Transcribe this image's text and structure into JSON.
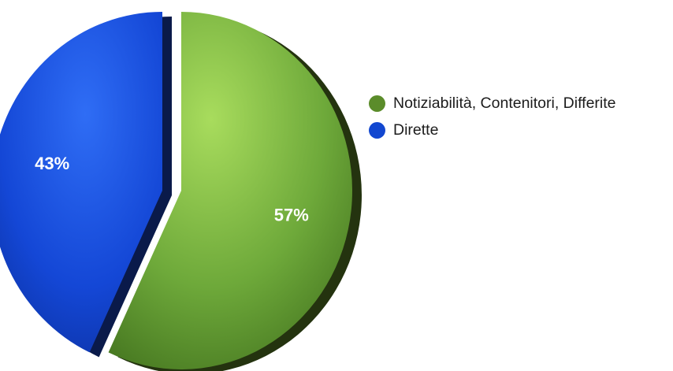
{
  "chart_data": {
    "type": "pie",
    "slices": [
      {
        "name": "Notiziabilità, Contenitori, Differite",
        "value": 57,
        "label": "57%",
        "color": "#5b8c2a"
      },
      {
        "name": "Dirette",
        "value": 43,
        "label": "43%",
        "color": "#1247d0"
      }
    ],
    "legend_position": "right"
  }
}
